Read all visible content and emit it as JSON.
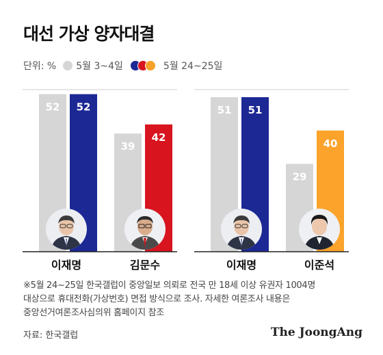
{
  "title": "대선 가상 양자대결",
  "legend": {
    "unit": "단위: %",
    "period1": "5월 3~4일",
    "period2": "5월 24~25일"
  },
  "colors": {
    "period1": "#d6d6d6",
    "lee": "#1c2894",
    "kim": "#d8141f",
    "legend_yellow": "#f7a12a",
    "lee_jun": "#fba32a"
  },
  "chart_data": [
    {
      "type": "bar",
      "title": "",
      "categories": [
        "이재명",
        "김문수"
      ],
      "series": [
        {
          "name": "5월 3~4일",
          "values": [
            52,
            39
          ]
        },
        {
          "name": "5월 24~25일",
          "values": [
            52,
            42
          ]
        }
      ],
      "ylim": [
        0,
        60
      ],
      "bar_colors": [
        [
          "#d6d6d6",
          "#1c2894"
        ],
        [
          "#d6d6d6",
          "#d8141f"
        ]
      ]
    },
    {
      "type": "bar",
      "title": "",
      "categories": [
        "이재명",
        "이준석"
      ],
      "series": [
        {
          "name": "5월 3~4일",
          "values": [
            51,
            29
          ]
        },
        {
          "name": "5월 24~25일",
          "values": [
            51,
            40
          ]
        }
      ],
      "ylim": [
        0,
        60
      ],
      "bar_colors": [
        [
          "#d6d6d6",
          "#1c2894"
        ],
        [
          "#d6d6d6",
          "#fba32a"
        ]
      ]
    }
  ],
  "candidates": [
    {
      "name": "이재명",
      "icon": "portrait-lee-jae-myung"
    },
    {
      "name": "김문수",
      "icon": "portrait-kim-moon-soo"
    },
    {
      "name": "이재명",
      "icon": "portrait-lee-jae-myung"
    },
    {
      "name": "이준석",
      "icon": "portrait-lee-jun-seok"
    }
  ],
  "footnote": {
    "line1": "※5월 24~25일 한국갤럽이 중앙일보 의뢰로 전국 만 18세 이상 유권자 1004명",
    "line2": "대상으로 휴대전화(가상번호) 면접 방식으로 조사. 자세한 여론조사 내용은",
    "line3": "중앙선거여론조사심의위 홈페이지 참조"
  },
  "source": "자료: 한국갤럽",
  "logo": "The JoongAng"
}
